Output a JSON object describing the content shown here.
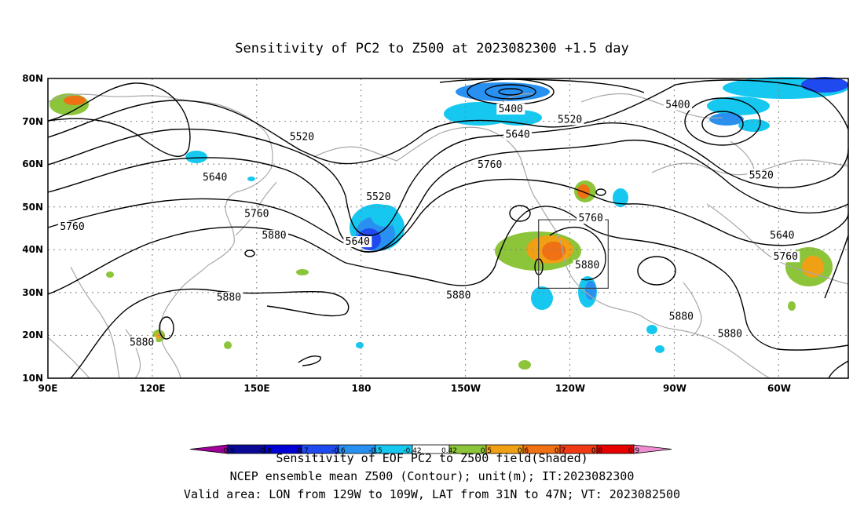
{
  "title": "Sensitivity of PC2 to Z500 at 2023082300 +1.5 day",
  "map": {
    "lat_ticks": [
      "80N",
      "70N",
      "60N",
      "50N",
      "40N",
      "30N",
      "20N",
      "10N"
    ],
    "lon_ticks": [
      "90E",
      "120E",
      "150E",
      "180",
      "150W",
      "120W",
      "90W",
      "60W"
    ],
    "lon_range": [
      90,
      320
    ],
    "lat_range": [
      10,
      80
    ],
    "grid": true,
    "contour_labels": [
      {
        "text": "5400",
        "lon": 223,
        "lat": 72.5
      },
      {
        "text": "5400",
        "lon": 271,
        "lat": 73.5
      },
      {
        "text": "5520",
        "lon": 240,
        "lat": 70
      },
      {
        "text": "5520",
        "lon": 163,
        "lat": 66
      },
      {
        "text": "5520",
        "lon": 185,
        "lat": 52
      },
      {
        "text": "5520",
        "lon": 295,
        "lat": 57
      },
      {
        "text": "5640",
        "lon": 225,
        "lat": 66.5
      },
      {
        "text": "5640",
        "lon": 138,
        "lat": 56.5
      },
      {
        "text": "5640",
        "lon": 179,
        "lat": 41.5
      },
      {
        "text": "5640",
        "lon": 301,
        "lat": 43
      },
      {
        "text": "5760",
        "lon": 217,
        "lat": 59.5
      },
      {
        "text": "5760",
        "lon": 150,
        "lat": 48
      },
      {
        "text": "5760",
        "lon": 97,
        "lat": 45
      },
      {
        "text": "5760",
        "lon": 246,
        "lat": 47
      },
      {
        "text": "5760",
        "lon": 302,
        "lat": 38
      },
      {
        "text": "5880",
        "lon": 155,
        "lat": 43
      },
      {
        "text": "5880",
        "lon": 245,
        "lat": 36
      },
      {
        "text": "5880",
        "lon": 208,
        "lat": 29
      },
      {
        "text": "5880",
        "lon": 142,
        "lat": 28.5
      },
      {
        "text": "5880",
        "lon": 117,
        "lat": 18
      },
      {
        "text": "5880",
        "lon": 272,
        "lat": 24
      },
      {
        "text": "5880",
        "lon": 286,
        "lat": 20
      }
    ]
  },
  "colorbar": {
    "levels": [
      "-0.9",
      "-0.8",
      "-0.7",
      "-0.6",
      "-0.5",
      "-0.42",
      "0.42",
      "0.5",
      "0.6",
      "0.7",
      "0.8",
      "0.9"
    ],
    "colors": [
      "#a0009a",
      "#0a0a96",
      "#0000d6",
      "#1e4af0",
      "#2890f0",
      "#16c8f0",
      "#ffffff",
      "#8cc43a",
      "#f0a014",
      "#f07014",
      "#f03a14",
      "#e60000",
      "#f08cd0"
    ]
  },
  "footer": {
    "line1": "Sensitivity of EOF PC2 to Z500 field(Shaded)",
    "line2": "NCEP ensemble mean Z500 (Contour); unit(m); IT:2023082300",
    "line3": "Valid area: LON from 129W to 109W, LAT from 31N to 47N; VT: 2023082500"
  },
  "valid_box": {
    "lon_min": 231,
    "lon_max": 251,
    "lat_min": 31,
    "lat_max": 47
  }
}
